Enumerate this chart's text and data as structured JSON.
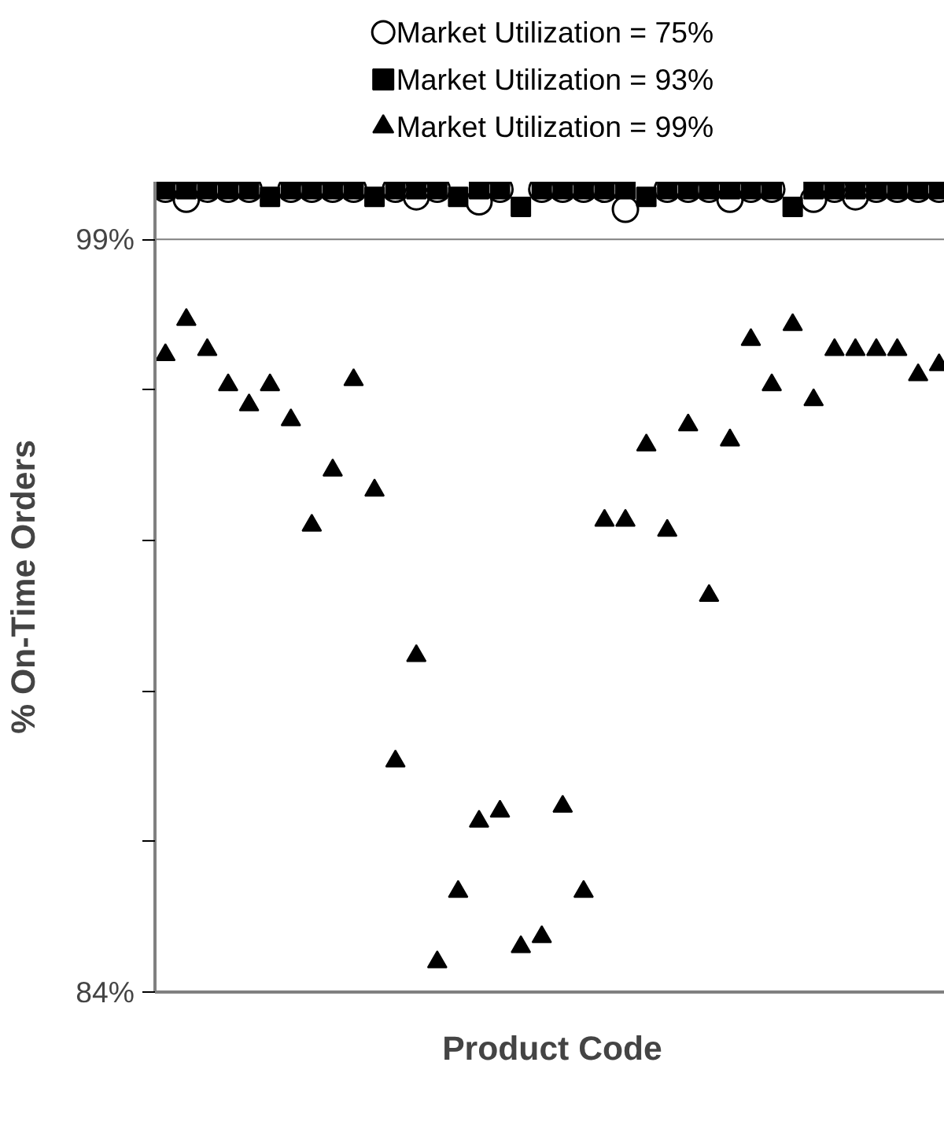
{
  "chart_data": {
    "type": "scatter",
    "xlabel": "Product Code",
    "ylabel": "% On-Time Orders",
    "categories": [
      null,
      null,
      null,
      null,
      null,
      null,
      null,
      null,
      null,
      null,
      null,
      null,
      null,
      null,
      null,
      null,
      null,
      null,
      null,
      null,
      null,
      null,
      null,
      null,
      null,
      null,
      null,
      null,
      null,
      null,
      null,
      null,
      null,
      null,
      null,
      null,
      null,
      null
    ],
    "series": [
      {
        "name": "Market Utilization = 75%",
        "color": "#000000",
        "marker": "circle",
        "values": [
          100,
          99.8,
          100,
          100,
          100,
          null,
          100,
          100,
          100,
          100,
          null,
          100,
          99.85,
          100,
          null,
          99.75,
          100,
          null,
          100,
          100,
          100,
          100,
          99.6,
          null,
          100,
          100,
          100,
          99.8,
          100,
          100,
          null,
          99.8,
          100,
          99.85,
          100,
          100,
          100,
          100
        ]
      },
      {
        "name": "Market Utilization = 93%",
        "color": "#000000",
        "marker": "square",
        "values": [
          100,
          100,
          100,
          100,
          100,
          99.85,
          100,
          100,
          100,
          100,
          99.85,
          100,
          100,
          100,
          99.85,
          100,
          100,
          99.65,
          100,
          100,
          100,
          100,
          100,
          99.85,
          100,
          100,
          100,
          100,
          100,
          100,
          99.65,
          100,
          100,
          100,
          100,
          100,
          100,
          100
        ]
      },
      {
        "name": "Market Utilization = 99%",
        "color": "#000000",
        "marker": "triangle",
        "values": [
          96.7,
          97.4,
          96.8,
          96.1,
          95.7,
          96.1,
          95.4,
          93.3,
          94.4,
          96.2,
          94.0,
          88.6,
          90.7,
          84.6,
          86.0,
          87.4,
          87.6,
          84.9,
          85.1,
          87.7,
          86.0,
          93.4,
          93.4,
          94.9,
          93.2,
          95.3,
          91.9,
          95.0,
          97.0,
          96.1,
          97.3,
          95.8,
          96.8,
          96.8,
          96.8,
          96.8,
          96.3,
          96.5
        ]
      }
    ],
    "ylim": [
      84,
      100.15
    ],
    "yticks": [
      {
        "value": 84,
        "label": "84%"
      },
      {
        "value": 87,
        "label": null
      },
      {
        "value": 90,
        "label": null
      },
      {
        "value": 93,
        "label": null
      },
      {
        "value": 96,
        "label": null
      },
      {
        "value": 99,
        "label": "99%"
      }
    ],
    "ref_lines": [
      {
        "axis": "y",
        "value": 99,
        "label": null,
        "color": "#808080"
      }
    ],
    "legend": "top",
    "grid": false,
    "tick_labels": "y"
  }
}
